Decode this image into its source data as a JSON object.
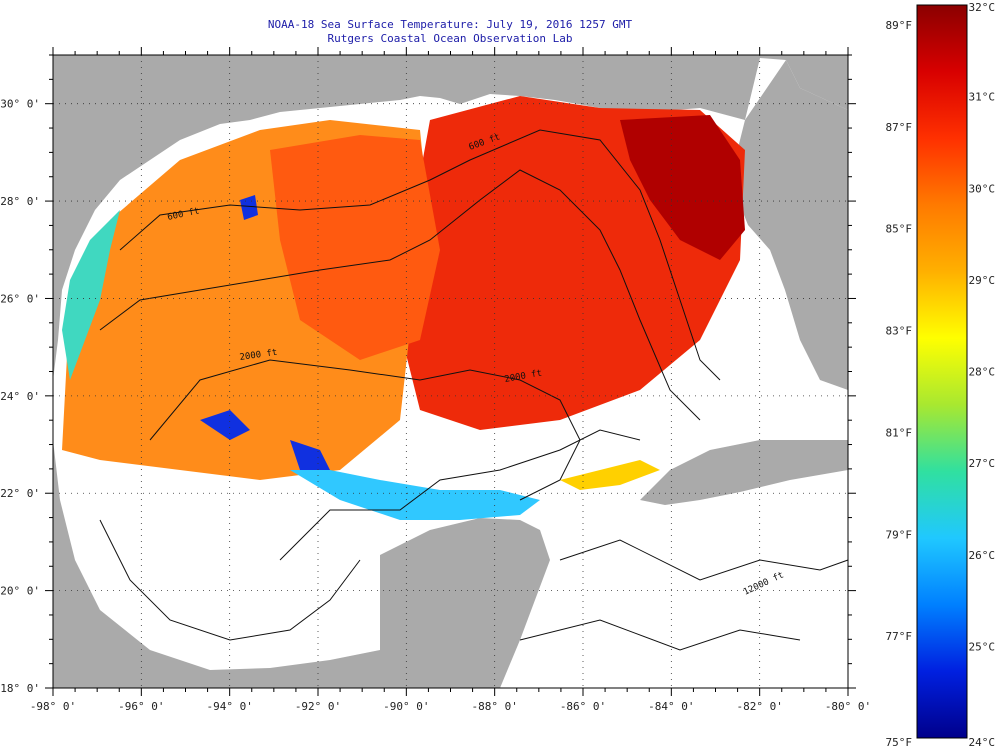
{
  "title": {
    "line1": "NOAA-18 Sea Surface Temperature:  July 19, 2016 1257 GMT",
    "line2": "Rutgers Coastal Ocean Observation Lab"
  },
  "map": {
    "lon_range": [
      -98,
      -80
    ],
    "lat_range": [
      18,
      31
    ],
    "lon_ticks": [
      "-98° 0'",
      "-96° 0'",
      "-94° 0'",
      "-92° 0'",
      "-90° 0'",
      "-88° 0'",
      "-86° 0'",
      "-84° 0'",
      "-82° 0'",
      "-80° 0'"
    ],
    "lat_ticks": [
      "18° 0'",
      "20° 0'",
      "22° 0'",
      "24° 0'",
      "26° 0'",
      "28° 0'",
      "30° 0'"
    ],
    "contour_labels": [
      "600 ft",
      "2000 ft",
      "12000 ft"
    ],
    "land_color": "#aaaaaa",
    "missing_data_color": "#ffffff"
  },
  "colorbar": {
    "fahrenheit_labels": [
      "89°F",
      "87°F",
      "85°F",
      "83°F",
      "81°F",
      "79°F",
      "77°F",
      "75°F"
    ],
    "celsius_labels": [
      "32°C",
      "31°C",
      "30°C",
      "29°C",
      "28°C",
      "27°C",
      "26°C",
      "25°C",
      "24°C"
    ],
    "colors": [
      "#8b0000",
      "#d80000",
      "#ff3000",
      "#ff7a00",
      "#ffb000",
      "#ffff00",
      "#a8e830",
      "#30e0a0",
      "#20c8ff",
      "#0080ff",
      "#0020e0",
      "#00008b"
    ]
  }
}
